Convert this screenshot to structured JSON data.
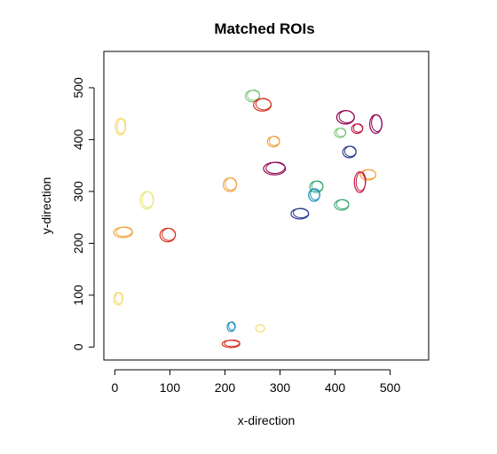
{
  "chart_data": {
    "type": "scatter",
    "title": "Matched ROIs",
    "xlabel": "x-direction",
    "ylabel": "y-direction",
    "xlim": [
      -20,
      570
    ],
    "ylim": [
      -25,
      570
    ],
    "xticks": [
      "0",
      "100",
      "200",
      "300",
      "400",
      "500"
    ],
    "yticks": [
      "0",
      "100",
      "200",
      "300",
      "400",
      "500"
    ],
    "grid": false,
    "rois": [
      {
        "x": 250,
        "y": 484,
        "rx": 13,
        "ry": 11,
        "color": "#7fc97f",
        "rings": 2
      },
      {
        "x": 268,
        "y": 467,
        "rx": 16,
        "ry": 12,
        "color": "#d7301f",
        "rings": 2
      },
      {
        "x": 288,
        "y": 396,
        "rx": 11,
        "ry": 10,
        "color": "#f4a340",
        "rings": 2
      },
      {
        "x": 419,
        "y": 443,
        "rx": 16,
        "ry": 13,
        "color": "#8e0152",
        "rings": 2
      },
      {
        "x": 440,
        "y": 421,
        "rx": 10,
        "ry": 9,
        "color": "#c51b4a",
        "rings": 2
      },
      {
        "x": 474,
        "y": 430,
        "rx": 11,
        "ry": 18,
        "color": "#8e0152",
        "rings": 2
      },
      {
        "x": 409,
        "y": 413,
        "rx": 10,
        "ry": 9,
        "color": "#7fc97f",
        "rings": 2
      },
      {
        "x": 426,
        "y": 376,
        "rx": 12,
        "ry": 11,
        "color": "#2c3e8c",
        "rings": 2
      },
      {
        "x": 290,
        "y": 344,
        "rx": 20,
        "ry": 12,
        "color": "#8e0152",
        "rings": 2
      },
      {
        "x": 460,
        "y": 332,
        "rx": 14,
        "ry": 10,
        "color": "#f4a340",
        "rings": 2
      },
      {
        "x": 445,
        "y": 318,
        "rx": 10,
        "ry": 20,
        "color": "#c51b4a",
        "rings": 2
      },
      {
        "x": 366,
        "y": 309,
        "rx": 12,
        "ry": 11,
        "color": "#41ae76",
        "rings": 2
      },
      {
        "x": 362,
        "y": 293,
        "rx": 10,
        "ry": 12,
        "color": "#1d91c0",
        "rings": 2
      },
      {
        "x": 336,
        "y": 257,
        "rx": 16,
        "ry": 10,
        "color": "#2c3e8c",
        "rings": 2
      },
      {
        "x": 412,
        "y": 274,
        "rx": 13,
        "ry": 10,
        "color": "#41ae76",
        "rings": 2
      },
      {
        "x": 10,
        "y": 425,
        "rx": 9,
        "ry": 16,
        "color": "#f6d96a",
        "rings": 2
      },
      {
        "x": 58,
        "y": 283,
        "rx": 12,
        "ry": 17,
        "color": "#e6e87a",
        "rings": 2
      },
      {
        "x": 15,
        "y": 221,
        "rx": 17,
        "ry": 10,
        "color": "#f4a340",
        "rings": 2
      },
      {
        "x": 96,
        "y": 216,
        "rx": 14,
        "ry": 13,
        "color": "#d7301f",
        "rings": 2
      },
      {
        "x": 209,
        "y": 313,
        "rx": 12,
        "ry": 13,
        "color": "#f4a340",
        "rings": 2
      },
      {
        "x": 6,
        "y": 93,
        "rx": 8,
        "ry": 12,
        "color": "#f6d96a",
        "rings": 2
      },
      {
        "x": 211,
        "y": 39,
        "rx": 7,
        "ry": 9,
        "color": "#1d91c0",
        "rings": 2
      },
      {
        "x": 264,
        "y": 36,
        "rx": 8,
        "ry": 7,
        "color": "#f6d96a",
        "rings": 1
      },
      {
        "x": 211,
        "y": 6,
        "rx": 16,
        "ry": 7,
        "color": "#d7301f",
        "rings": 2
      }
    ]
  }
}
